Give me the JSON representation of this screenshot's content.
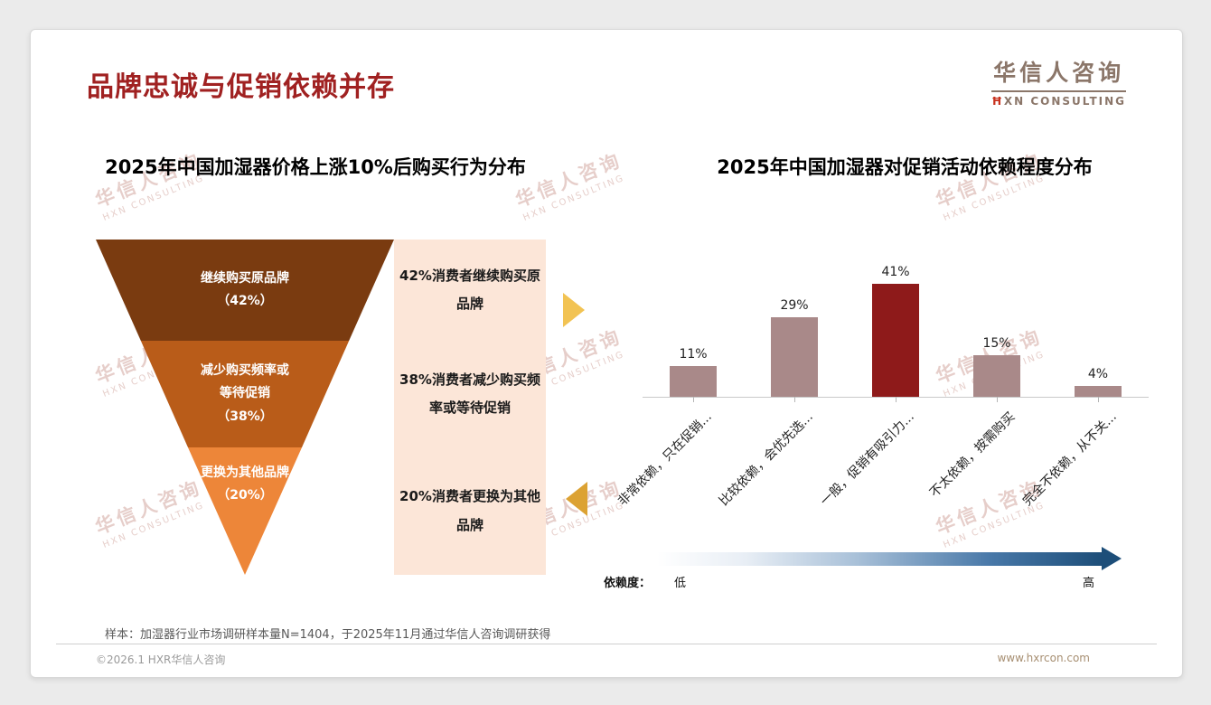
{
  "page": {
    "title": "品牌忠诚与促销依赖并存",
    "sample_note": "样本：加湿器行业市场调研样本量N=1404，于2025年11月通过华信人咨询调研获得",
    "footer_left": "©2026.1 HXR华信人咨询",
    "footer_right": "www.hxrcon.com"
  },
  "logo": {
    "cn": "华信人咨询",
    "en_mark": "Ħ",
    "en_rest": "XN CONSULTING"
  },
  "watermark": {
    "cn": "华信人咨询",
    "en": "HXN CONSULTING"
  },
  "decor": {
    "arrow_right_color": "#f2c353",
    "arrow_left_color": "#dca233",
    "gradient_start": "#ffffff",
    "gradient_end": "#1d4e79"
  },
  "chart_data": [
    {
      "type": "funnel",
      "title": "2025年中国加湿器价格上涨10%后购买行为分布",
      "segments": [
        {
          "label": "继续购买原品牌",
          "pct": "（42%）",
          "value": 42,
          "color": "#7a3b10",
          "desc": "42%消费者继续购买原品牌"
        },
        {
          "label": "减少购买频率或等待促销",
          "pct": "（38%）",
          "value": 38,
          "color": "#b95c19",
          "desc": "38%消费者减少购买频率或等待促销"
        },
        {
          "label": "更换为其他品牌",
          "pct": "（20%）",
          "value": 20,
          "color": "#ed8639",
          "desc": "20%消费者更换为其他品牌"
        }
      ]
    },
    {
      "type": "bar",
      "title": "2025年中国加湿器对促销活动依赖程度分布",
      "categories": [
        "非常依赖，只在促销...",
        "比较依赖，会优先选...",
        "一般，促销有吸引力...",
        "不太依赖，按需购买",
        "完全不依赖，从不关..."
      ],
      "values": [
        11,
        29,
        41,
        15,
        4
      ],
      "value_labels": [
        "11%",
        "29%",
        "41%",
        "15%",
        "4%"
      ],
      "highlight_index": 2,
      "bar_color": "#a98989",
      "highlight_color": "#8e1a1a",
      "ylim": [
        0,
        45
      ],
      "legend_position": "none",
      "axis_note": {
        "label": "依赖度：",
        "low": "低",
        "high": "高"
      }
    }
  ]
}
